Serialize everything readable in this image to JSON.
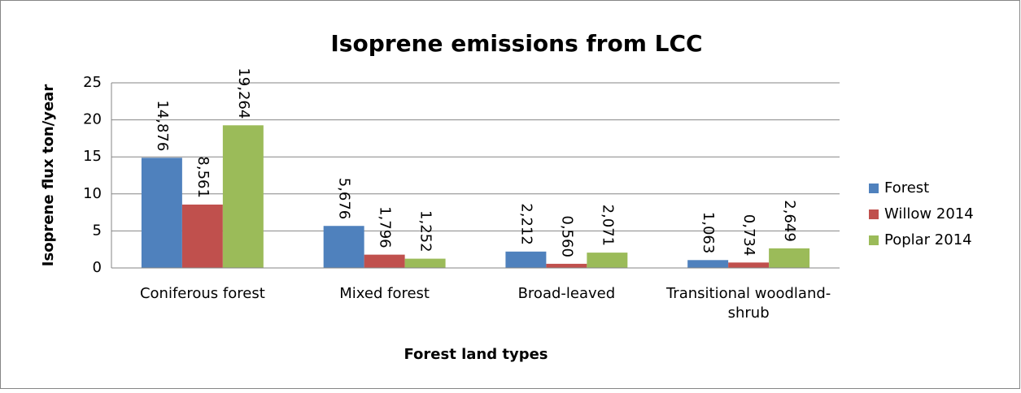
{
  "chart_data": {
    "type": "bar",
    "title": "Isoprene emissions from LCC",
    "x_label": "Forest land types",
    "y_label": "Isoprene flux ton/year",
    "categories": [
      "Coniferous forest",
      "Mixed forest",
      "Broad-leaved",
      "Transitional woodland-shrub"
    ],
    "series": [
      {
        "name": "Forest",
        "color": "#4f81bd",
        "values": [
          14.876,
          5.676,
          2.212,
          1.063
        ],
        "value_labels": [
          "14,876",
          "5,676",
          "2,212",
          "1,063"
        ]
      },
      {
        "name": "Willow 2014",
        "color": "#c0504d",
        "values": [
          8.561,
          1.796,
          0.56,
          0.734
        ],
        "value_labels": [
          "8,561",
          "1,796",
          "0,560",
          "0,734"
        ]
      },
      {
        "name": "Poplar 2014",
        "color": "#9bbb59",
        "values": [
          19.264,
          1.252,
          2.071,
          2.649
        ],
        "value_labels": [
          "19,264",
          "1,252",
          "2,071",
          "2,649"
        ]
      }
    ],
    "ylim": [
      0,
      25
    ],
    "yticks": [
      0,
      5,
      10,
      15,
      20,
      25
    ],
    "grid": true,
    "legend": "right"
  }
}
